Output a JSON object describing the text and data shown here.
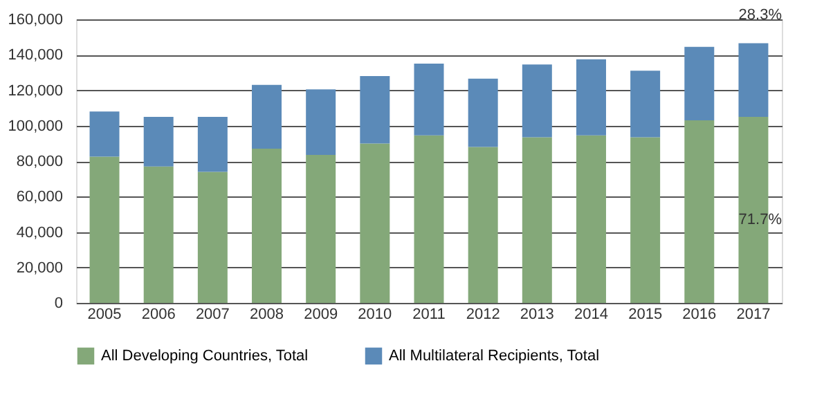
{
  "chart_data": {
    "type": "bar",
    "stacked": true,
    "categories": [
      "2005",
      "2006",
      "2007",
      "2008",
      "2009",
      "2010",
      "2011",
      "2012",
      "2013",
      "2014",
      "2015",
      "2016",
      "2017"
    ],
    "series": [
      {
        "name": "All Developing Countries, Total",
        "color": "#84a879",
        "values": [
          82500,
          77000,
          74000,
          87000,
          83500,
          90000,
          94500,
          88000,
          93500,
          94500,
          93500,
          103000,
          105000
        ]
      },
      {
        "name": "All Multilateral Recipients, Total",
        "color": "#5b8ab8",
        "values": [
          25500,
          28000,
          31000,
          36000,
          37000,
          38000,
          40500,
          38500,
          41000,
          43000,
          37500,
          41500,
          41500
        ]
      }
    ],
    "ylim": [
      0,
      160000
    ],
    "yticks": [
      0,
      {
        "value": 20000,
        "label": "20,000"
      },
      {
        "value": 40000,
        "label": "40,000"
      },
      {
        "value": 60000,
        "label": "60,000"
      },
      {
        "value": 80000,
        "label": "80,000"
      },
      {
        "value": 100000,
        "label": "100,000"
      },
      {
        "value": 120000,
        "label": "120,000"
      },
      {
        "value": 140000,
        "label": "140,000"
      },
      {
        "value": 160000,
        "label": "160,000"
      }
    ],
    "grid": "y",
    "legend": "bottom",
    "annotations": [
      "28.3%",
      "71.7%"
    ]
  }
}
